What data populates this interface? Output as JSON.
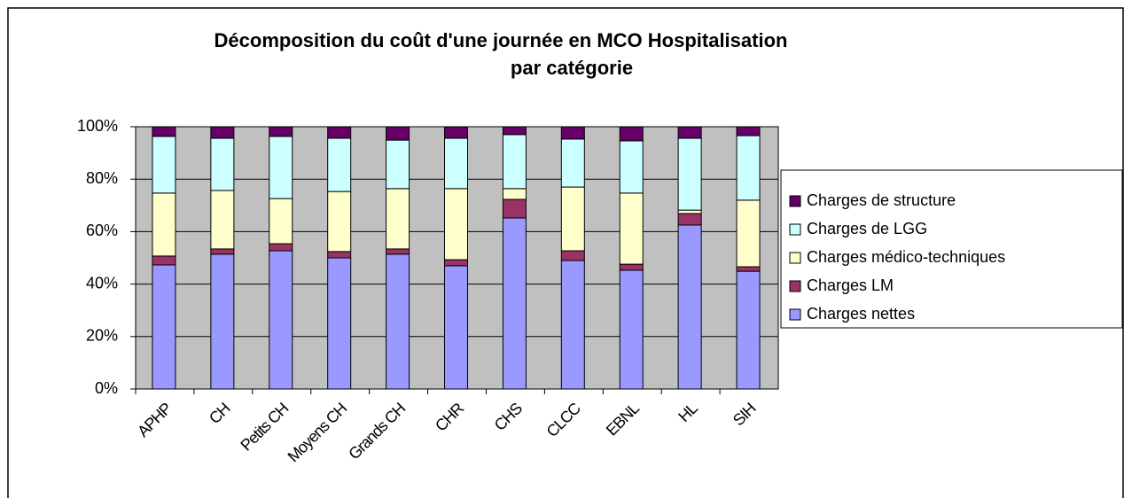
{
  "chart_data": {
    "type": "stacked_bar_percent",
    "title": "Décomposition du coût d'une journée en MCO Hospitalisation",
    "subtitle": "par catégorie",
    "categories": [
      "APHP",
      "CH",
      "Petits CH",
      "Moyens CH",
      "Grands CH",
      "CHR",
      "CHS",
      "CLCC",
      "EBNL",
      "HL",
      "SIH"
    ],
    "series": [
      {
        "name": "Charges nettes",
        "color": "#9999ff",
        "values": [
          47.3,
          51.4,
          52.7,
          50.0,
          51.4,
          47.0,
          65.2,
          49.0,
          45.3,
          62.5,
          44.9
        ]
      },
      {
        "name": "Charges LM",
        "color": "#993366",
        "values": [
          3.4,
          2.0,
          2.7,
          2.4,
          2.0,
          2.3,
          7.1,
          3.7,
          2.3,
          4.4,
          1.7
        ]
      },
      {
        "name": "Charges médico-techniques",
        "color": "#ffffcc",
        "values": [
          24.0,
          22.3,
          17.2,
          22.9,
          23.0,
          27.1,
          4.1,
          24.3,
          27.1,
          1.3,
          25.4
        ]
      },
      {
        "name": "Charges de LGG",
        "color": "#ccffff",
        "values": [
          21.6,
          19.9,
          23.7,
          20.3,
          18.5,
          19.2,
          20.6,
          18.3,
          19.9,
          27.4,
          24.6
        ]
      },
      {
        "name": "Charges de structure",
        "color": "#660066",
        "values": [
          3.7,
          4.4,
          3.7,
          4.4,
          5.1,
          4.4,
          3.0,
          4.7,
          5.4,
          4.4,
          3.4
        ]
      }
    ],
    "ylim": [
      0,
      100
    ],
    "yticks": [
      {
        "value": 0,
        "label": "0%"
      },
      {
        "value": 20,
        "label": "20%"
      },
      {
        "value": 40,
        "label": "40%"
      },
      {
        "value": 60,
        "label": "60%"
      },
      {
        "value": 80,
        "label": "80%"
      },
      {
        "value": 100,
        "label": "100%"
      }
    ],
    "grid": true,
    "legend": "right"
  }
}
